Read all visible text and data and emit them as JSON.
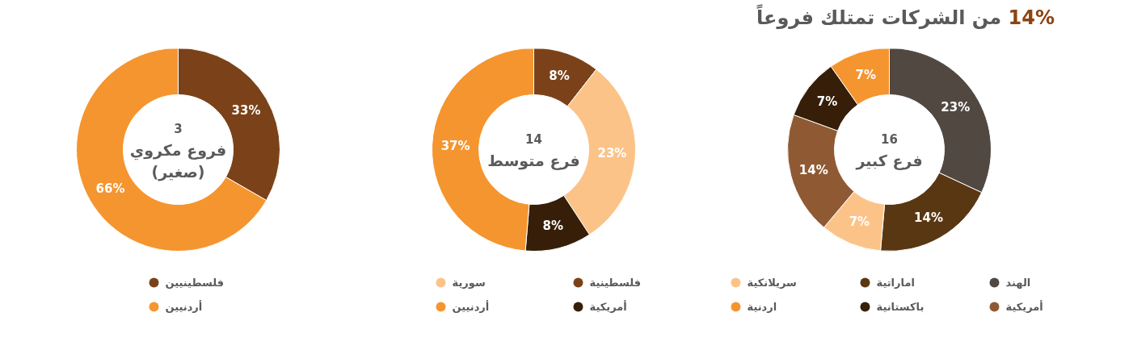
{
  "chart_data": [
    {
      "type": "donut",
      "subtitle": "14% من الشركات تمتلك فروعاً",
      "title": "فرع كبير",
      "annotations": [
        "16"
      ],
      "categories": [
        "الهند",
        "اماراتية",
        "سريلانكية",
        "أمريكية",
        "باكستانية",
        "اردنية"
      ],
      "values": [
        23,
        14,
        7,
        14,
        7,
        7
      ],
      "value_labels": [
        "23%",
        "14%",
        "7%",
        "14%",
        "7%",
        "7%"
      ],
      "colors": [
        "#524842",
        "#5a3713",
        "#fcc388",
        "#8f5a33",
        "#361e08",
        "#f5952f"
      ],
      "legend": "bottom"
    },
    {
      "type": "donut",
      "title": "فرع متوسط",
      "annotations": [
        "14"
      ],
      "categories": [
        "فلسطينية",
        "سورية",
        "أمريكية",
        "أردنيين"
      ],
      "values": [
        8,
        23,
        8,
        37
      ],
      "value_labels": [
        "8%",
        "23%",
        "8%",
        "37%"
      ],
      "colors": [
        "#7b4219",
        "#fcc388",
        "#361e08",
        "#f5952f"
      ],
      "legend": "bottom"
    },
    {
      "type": "donut",
      "title": "فروع مكروي\n(صغير)",
      "annotations": [
        "3"
      ],
      "categories": [
        "فلسطينيين",
        "أردنيين"
      ],
      "values": [
        33,
        66
      ],
      "value_labels": [
        "33%",
        "66%"
      ],
      "colors": [
        "#7b4219",
        "#f5952f"
      ],
      "legend": "bottom"
    }
  ]
}
